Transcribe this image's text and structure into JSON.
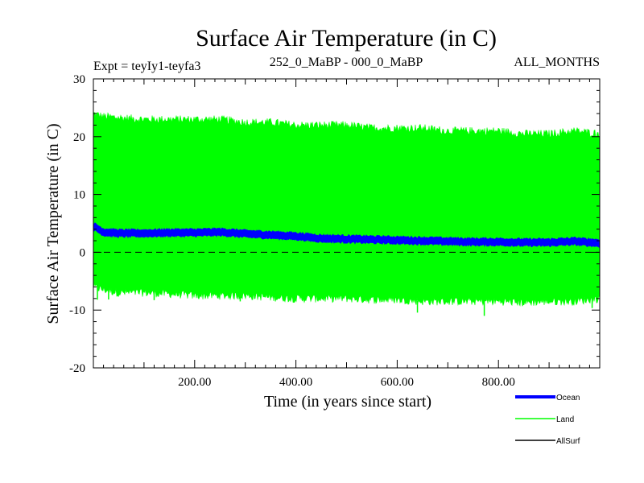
{
  "chart_data": {
    "type": "line",
    "title": "Surface Air Temperature (in C)",
    "subtitle_left": "Expt = teyIy1-teyfa3",
    "subtitle_center": "252_0_MaBP - 000_0_MaBP",
    "subtitle_right": "ALL_MONTHS",
    "xlabel": "Time (in years since start)",
    "ylabel": "Surface Air Temperature (in C)",
    "xlim": [
      0,
      1000
    ],
    "ylim": [
      -20,
      30
    ],
    "x_ticks": [
      200,
      400,
      600,
      800
    ],
    "x_tick_labels": [
      "200.00",
      "400.00",
      "600.00",
      "800.00"
    ],
    "y_ticks": [
      -20,
      -10,
      0,
      10,
      20,
      30
    ],
    "y_tick_labels": [
      "-20",
      "-10",
      "0",
      "10",
      "20",
      "30"
    ],
    "reference_line": {
      "y": 0,
      "style": "dashed"
    },
    "series": [
      {
        "name": "Ocean",
        "color": "#0000ff",
        "x": [
          0,
          20,
          50,
          100,
          150,
          200,
          250,
          300,
          350,
          400,
          450,
          500,
          550,
          600,
          650,
          700,
          750,
          800,
          850,
          900,
          950,
          1000
        ],
        "mean": [
          4.5,
          3.5,
          3.3,
          3.3,
          3.4,
          3.4,
          3.5,
          3.2,
          3.0,
          2.8,
          2.4,
          2.3,
          2.2,
          2.1,
          2.0,
          1.9,
          1.8,
          1.8,
          1.7,
          1.7,
          1.9,
          1.6
        ],
        "spread": 0.6
      },
      {
        "name": "Land",
        "color": "#00ff00",
        "x": [
          0,
          20,
          50,
          100,
          150,
          200,
          250,
          300,
          350,
          400,
          450,
          500,
          550,
          600,
          650,
          700,
          750,
          800,
          850,
          900,
          950,
          1000
        ],
        "upper": [
          24.0,
          23.5,
          23.3,
          23.0,
          23.0,
          23.0,
          23.0,
          22.5,
          22.5,
          22.0,
          22.0,
          22.0,
          21.5,
          21.5,
          21.5,
          21.0,
          21.0,
          21.0,
          20.5,
          20.5,
          21.0,
          20.5
        ],
        "lower": [
          -6.0,
          -6.5,
          -7.0,
          -7.0,
          -7.2,
          -7.5,
          -7.5,
          -7.5,
          -7.8,
          -8.0,
          -8.0,
          -8.0,
          -8.2,
          -8.2,
          -8.5,
          -8.5,
          -8.5,
          -8.5,
          -8.7,
          -8.5,
          -8.5,
          -8.0
        ]
      },
      {
        "name": "AllSurf",
        "color": "#000000",
        "x": [],
        "values": []
      }
    ],
    "legend": [
      "Ocean",
      "Land",
      "AllSurf"
    ],
    "legend_placement": "bottom-right"
  }
}
